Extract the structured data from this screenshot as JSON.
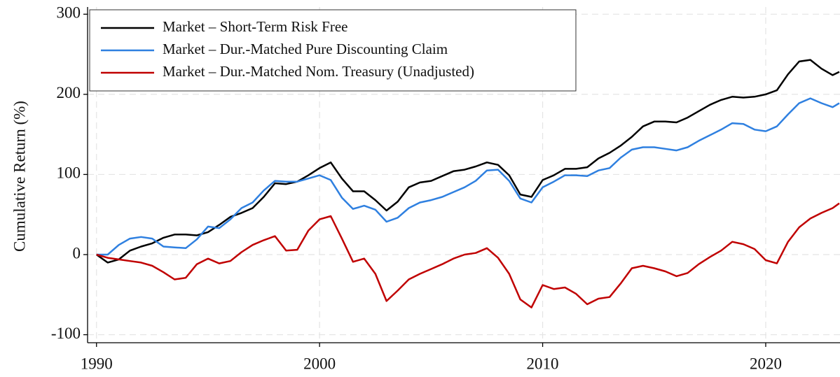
{
  "chart_data": {
    "type": "line",
    "y_label": "Cumulative Return (%)",
    "x": [
      1990,
      1990.5,
      1991,
      1991.5,
      1992,
      1992.5,
      1993,
      1993.5,
      1994,
      1994.5,
      1995,
      1995.5,
      1996,
      1996.5,
      1997,
      1997.5,
      1998,
      1998.5,
      1999,
      1999.5,
      2000,
      2000.5,
      2001,
      2001.5,
      2002,
      2002.5,
      2003,
      2003.5,
      2004,
      2004.5,
      2005,
      2005.5,
      2006,
      2006.5,
      2007,
      2007.5,
      2008,
      2008.5,
      2009,
      2009.5,
      2010,
      2010.5,
      2011,
      2011.5,
      2012,
      2012.5,
      2013,
      2013.5,
      2014,
      2014.5,
      2015,
      2015.5,
      2016,
      2016.5,
      2017,
      2017.5,
      2018,
      2018.5,
      2019,
      2019.5,
      2020,
      2020.5,
      2021,
      2021.5,
      2022,
      2022.5,
      2023,
      2023.3
    ],
    "series": [
      {
        "name": "Market – Short-Term Risk Free",
        "color": "#000000",
        "values": [
          0,
          -10,
          -6,
          5,
          10,
          14,
          21,
          25,
          25,
          24,
          28,
          37,
          47,
          52,
          58,
          72,
          89,
          88,
          91,
          99,
          108,
          115,
          95,
          79,
          79,
          68,
          55,
          66,
          84,
          90,
          92,
          98,
          104,
          106,
          110,
          115,
          112,
          99,
          75,
          72,
          93,
          99,
          107,
          107,
          109,
          120,
          127,
          136,
          147,
          160,
          166,
          166,
          165,
          171,
          179,
          187,
          193,
          197,
          196,
          197,
          200,
          205,
          225,
          241,
          243,
          232,
          224,
          228
        ]
      },
      {
        "name": "Market – Dur.-Matched Pure Discounting Claim",
        "color": "#2f80e0",
        "values": [
          0,
          0,
          12,
          20,
          22,
          20,
          10,
          9,
          8,
          19,
          35,
          33,
          44,
          58,
          65,
          80,
          92,
          91,
          91,
          95,
          99,
          93,
          71,
          57,
          61,
          56,
          41,
          46,
          58,
          65,
          68,
          72,
          78,
          84,
          92,
          105,
          106,
          92,
          70,
          65,
          84,
          91,
          99,
          99,
          98,
          105,
          108,
          121,
          131,
          134,
          134,
          132,
          130,
          134,
          142,
          149,
          156,
          164,
          163,
          156,
          154,
          160,
          175,
          189,
          195,
          189,
          184,
          189
        ]
      },
      {
        "name": "Market – Dur.-Matched Nom. Treasury (Unadjusted)",
        "color": "#c00000",
        "values": [
          0,
          -4,
          -6,
          -8,
          -10,
          -14,
          -22,
          -31,
          -29,
          -12,
          -5,
          -11,
          -8,
          3,
          12,
          18,
          23,
          5,
          6,
          30,
          44,
          48,
          20,
          -9,
          -5,
          -24,
          -58,
          -45,
          -31,
          -24,
          -18,
          -12,
          -5,
          0,
          2,
          8,
          -4,
          -24,
          -56,
          -66,
          -38,
          -43,
          -41,
          -49,
          -62,
          -55,
          -53,
          -36,
          -17,
          -14,
          -17,
          -21,
          -27,
          -23,
          -12,
          -3,
          5,
          16,
          13,
          7,
          -7,
          -11,
          16,
          34,
          45,
          52,
          58,
          64
        ]
      }
    ],
    "xlim": [
      1989.6,
      2023.33
    ],
    "ylim": [
      -110,
      309
    ],
    "xticks": [
      1990,
      2000,
      2010,
      2020
    ],
    "yticks": [
      -100,
      0,
      100,
      200,
      300
    ],
    "grid": true,
    "legend": "upper left"
  }
}
